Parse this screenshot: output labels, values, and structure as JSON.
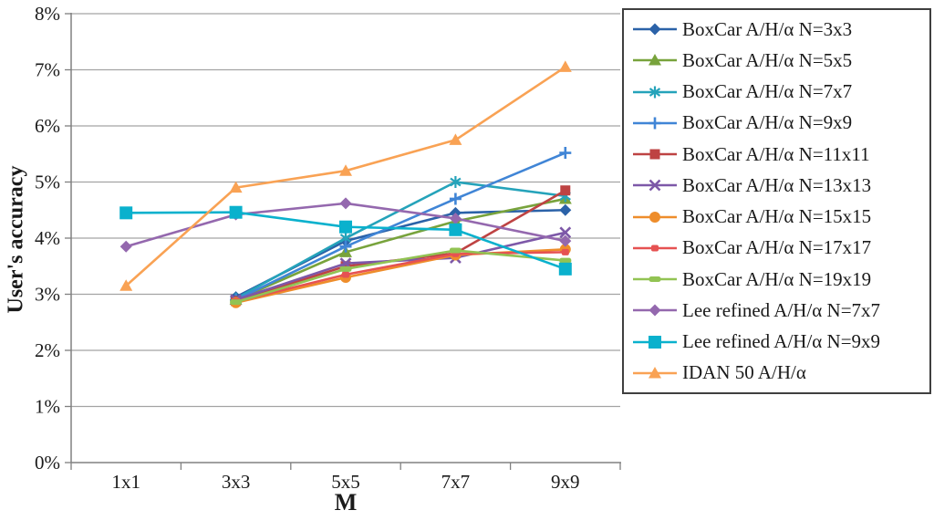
{
  "chart_data": {
    "type": "line",
    "title": "",
    "xlabel": "M",
    "ylabel": "User's accuracy",
    "categories": [
      "1x1",
      "3x3",
      "5x5",
      "7x7",
      "9x9"
    ],
    "ylim": [
      0,
      8
    ],
    "ytick_labels": [
      "0%",
      "1%",
      "2%",
      "3%",
      "4%",
      "5%",
      "6%",
      "7%",
      "8%"
    ],
    "grid": "horizontal",
    "legend_position": "right-box",
    "grid_color": "#a3a3a3",
    "axis_color": "#808080",
    "text_color": "#1a1a1a",
    "series": [
      {
        "name": "BoxCar A/H/α N=3x3",
        "color": "#2b62a8",
        "marker": "diamond",
        "values": [
          null,
          2.95,
          3.95,
          4.45,
          4.5
        ]
      },
      {
        "name": "BoxCar A/H/α N=5x5",
        "color": "#78a33c",
        "marker": "triangle",
        "values": [
          null,
          2.9,
          3.75,
          4.3,
          4.7
        ]
      },
      {
        "name": "BoxCar A/H/α N=7x7",
        "color": "#25a3ba",
        "marker": "asterisk",
        "values": [
          null,
          2.92,
          4.0,
          5.0,
          4.75
        ]
      },
      {
        "name": "BoxCar A/H/α N=9x9",
        "color": "#4085d6",
        "marker": "plus",
        "values": [
          null,
          2.9,
          3.85,
          4.7,
          5.52
        ]
      },
      {
        "name": "BoxCar A/H/α N=11x11",
        "color": "#be4343",
        "marker": "square",
        "values": [
          null,
          2.88,
          3.5,
          3.73,
          4.85
        ]
      },
      {
        "name": "BoxCar A/H/α N=13x13",
        "color": "#7d58a8",
        "marker": "x",
        "values": [
          null,
          2.9,
          3.55,
          3.65,
          4.1
        ]
      },
      {
        "name": "BoxCar A/H/α N=15x15",
        "color": "#ee8d2b",
        "marker": "circle",
        "values": [
          null,
          2.85,
          3.3,
          3.7,
          3.8
        ]
      },
      {
        "name": "BoxCar A/H/α N=17x17",
        "color": "#e65252",
        "marker": "dash-small",
        "values": [
          null,
          2.87,
          3.35,
          3.72,
          3.75
        ]
      },
      {
        "name": "BoxCar A/H/α N=19x19",
        "color": "#92c353",
        "marker": "dash",
        "values": [
          null,
          2.86,
          3.45,
          3.78,
          3.6
        ]
      },
      {
        "name": "Lee refined A/H/α N=7x7",
        "color": "#9468ae",
        "marker": "diamond",
        "values": [
          3.85,
          4.42,
          4.62,
          4.35,
          3.95
        ]
      },
      {
        "name": "Lee refined A/H/α N=9x9",
        "color": "#0ab1cd",
        "marker": "square-lg",
        "values": [
          4.45,
          4.46,
          4.2,
          4.15,
          3.45
        ]
      },
      {
        "name": "IDAN 50 A/H/α",
        "color": "#f9a254",
        "marker": "triangle",
        "values": [
          3.15,
          4.9,
          5.2,
          5.75,
          7.05
        ]
      }
    ]
  },
  "labels": {
    "y_axis_title": "User's accuracy",
    "x_axis_title": "M"
  }
}
